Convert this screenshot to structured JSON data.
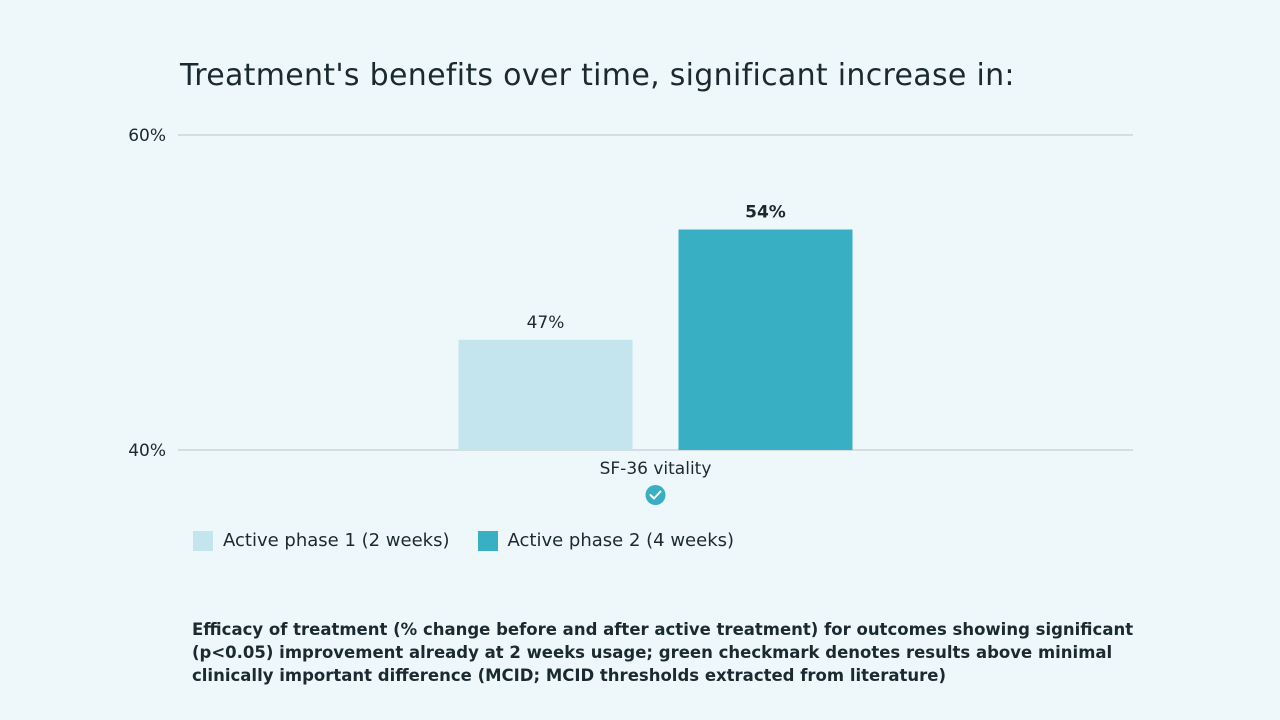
{
  "colors": {
    "background": "#eef8fa",
    "phase1": "#c4e5ed",
    "phase2": "#38afc2",
    "check": "#38afc2",
    "gridline": "#b8c4c8"
  },
  "chart_data": {
    "type": "bar",
    "title": "Treatment's benefits over time, significant increase in:",
    "categories": [
      "SF-36 vitality"
    ],
    "series": [
      {
        "name": "Active phase 1 (2 weeks)",
        "values": [
          47
        ],
        "value_labels": [
          "47%"
        ]
      },
      {
        "name": "Active phase 2 (4 weeks)",
        "values": [
          54
        ],
        "value_labels": [
          "54%"
        ]
      }
    ],
    "ylim": [
      40,
      60
    ],
    "yticks": [
      40,
      60
    ],
    "ytick_labels": [
      "40%",
      "60%"
    ],
    "grid": true,
    "legend": "bottom-left",
    "category_markers": [
      "check-circle-icon"
    ]
  },
  "caption": "Efficacy of treatment (% change before and after active treatment) for outcomes showing significant (p<0.05) improvement already at 2 weeks usage; green checkmark denotes results above minimal clinically important difference (MCID; MCID thresholds extracted from literature)"
}
